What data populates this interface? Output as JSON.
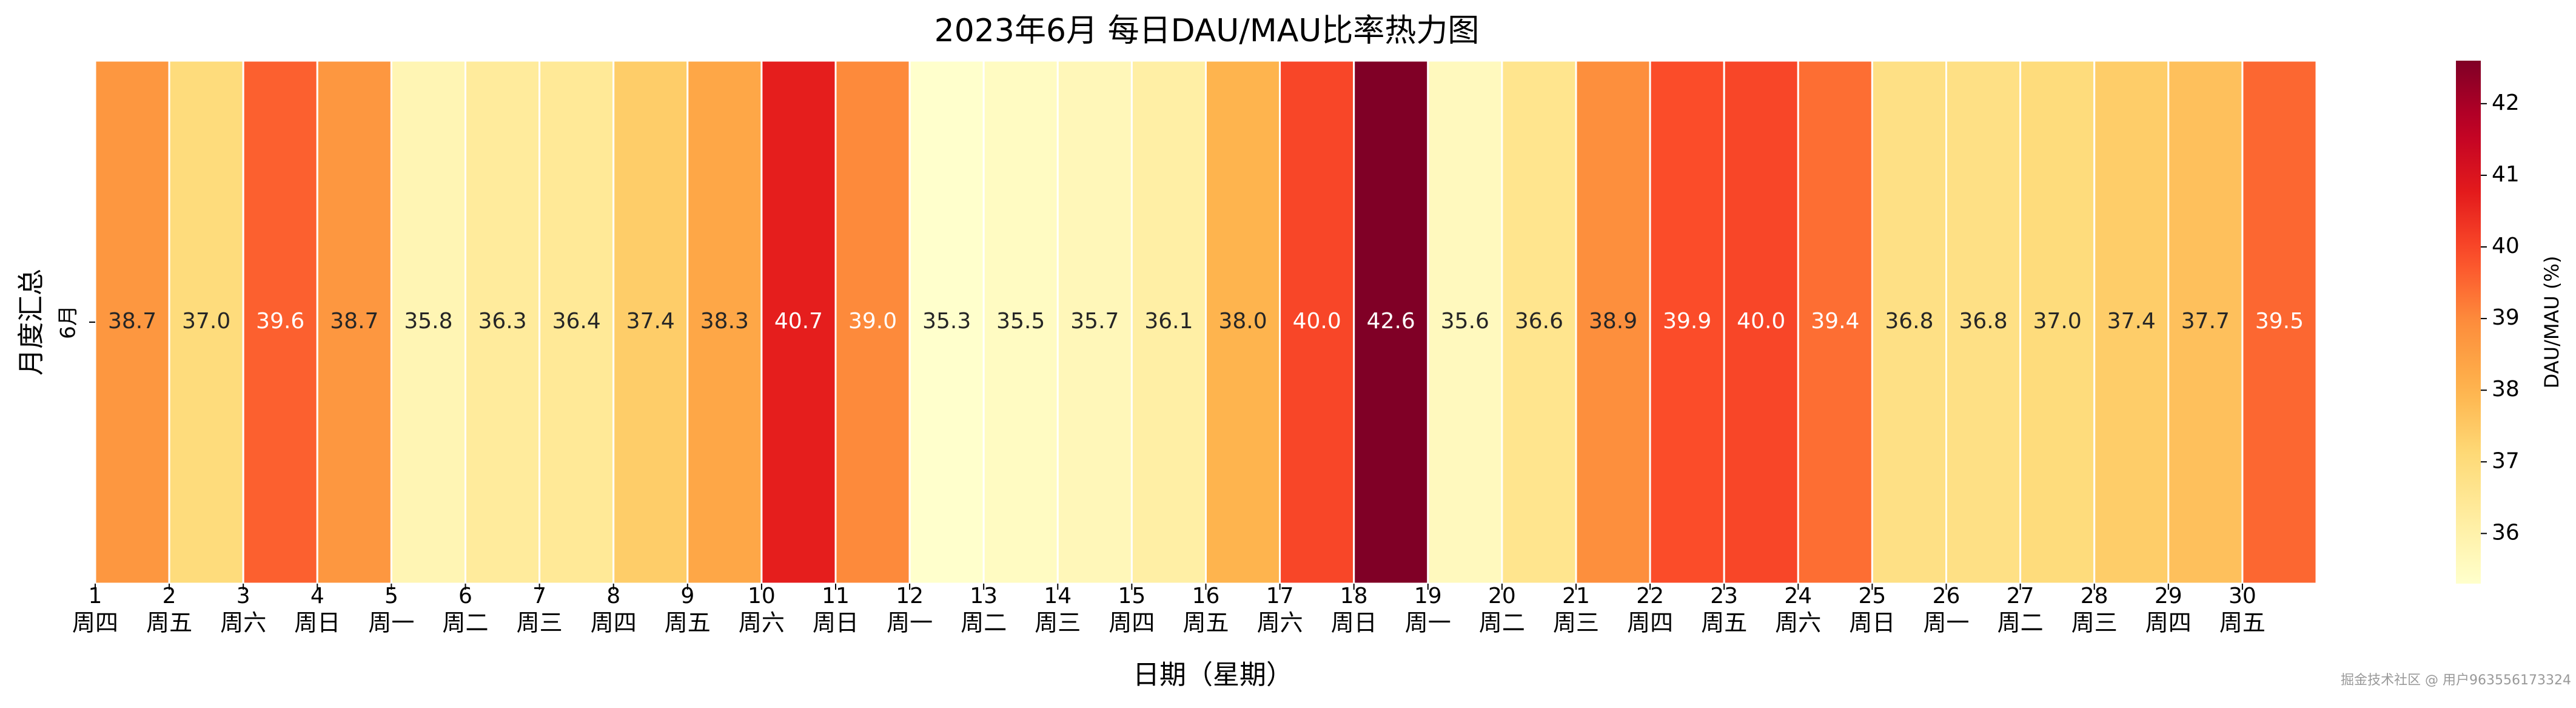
{
  "chart_data": {
    "type": "heatmap",
    "title": "2023年6月 每日DAU/MAU比率热力图",
    "xlabel": "日期（星期）",
    "ylabel": "月度汇总",
    "rows": [
      "6月"
    ],
    "categories": [
      "1",
      "2",
      "3",
      "4",
      "5",
      "6",
      "7",
      "8",
      "9",
      "10",
      "11",
      "12",
      "13",
      "14",
      "15",
      "16",
      "17",
      "18",
      "19",
      "20",
      "21",
      "22",
      "23",
      "24",
      "25",
      "26",
      "27",
      "28",
      "29",
      "30"
    ],
    "weekdays": [
      "周四",
      "周五",
      "周六",
      "周日",
      "周一",
      "周二",
      "周三",
      "周四",
      "周五",
      "周六",
      "周日",
      "周一",
      "周二",
      "周三",
      "周四",
      "周五",
      "周六",
      "周日",
      "周一",
      "周二",
      "周三",
      "周四",
      "周五",
      "周六",
      "周日",
      "周一",
      "周二",
      "周三",
      "周四",
      "周五"
    ],
    "values": [
      38.7,
      37.0,
      39.6,
      38.7,
      35.8,
      36.3,
      36.4,
      37.4,
      38.3,
      40.7,
      39.0,
      35.3,
      35.5,
      35.7,
      36.1,
      38.0,
      40.0,
      42.6,
      35.6,
      36.6,
      38.9,
      39.9,
      40.0,
      39.4,
      36.8,
      36.8,
      37.0,
      37.4,
      37.7,
      39.5
    ],
    "value_labels": [
      "38.7",
      "37.0",
      "39.6",
      "38.7",
      "35.8",
      "36.3",
      "36.4",
      "37.4",
      "38.3",
      "40.7",
      "39.0",
      "35.3",
      "35.5",
      "35.7",
      "36.1",
      "38.0",
      "40.0",
      "42.6",
      "35.6",
      "36.6",
      "38.9",
      "39.9",
      "40.0",
      "39.4",
      "36.8",
      "36.8",
      "37.0",
      "37.4",
      "37.7",
      "39.5"
    ],
    "colormap": "YlOrRd",
    "clim": [
      35.3,
      42.6
    ],
    "colorbar_label": "DAU/MAU (%)",
    "colorbar_ticks": [
      36,
      37,
      38,
      39,
      40,
      41,
      42
    ]
  },
  "watermark": "掘金技术社区 @ 用户963556173324"
}
